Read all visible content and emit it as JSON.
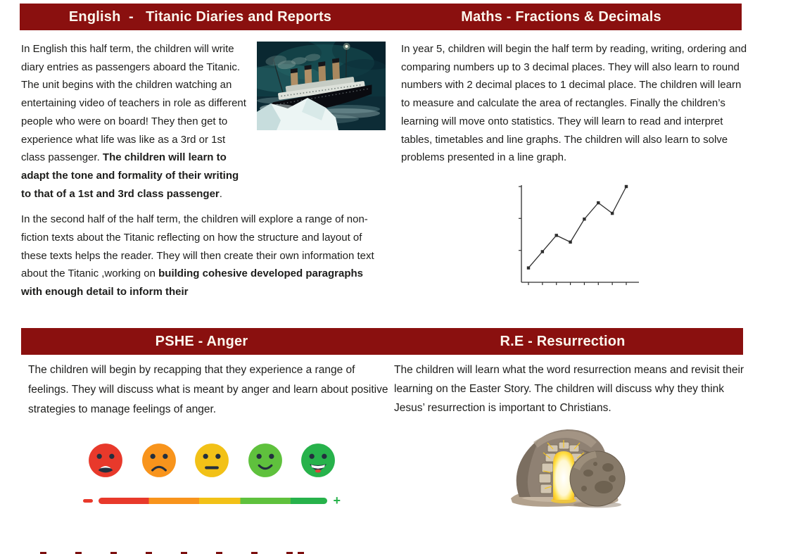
{
  "colors": {
    "banner_bg": "#8a100f",
    "banner_text": "#fcf7ee",
    "body_text": "#1d1d1b"
  },
  "banners": {
    "top_left": "English  -   Titanic Diaries and Reports",
    "top_right": "Maths - Fractions & Decimals",
    "bottom_left": "PSHE - Anger",
    "bottom_right": "R.E - Resurrection"
  },
  "english": {
    "para1_text": "In English this half term, the children will write diary entries as passengers aboard the Titanic. The unit begins with the children watching an entertaining video of teachers in role as different people who were on board! They then get to experience what life was like as a 3rd or 1st class passenger. ",
    "para1_bold": "The children will learn to adapt the tone and formality of their writing to that of a 1st and 3rd class passenger",
    "para1_tail": ".",
    "para2_text": "In the second half of the half term, the children will explore a range of non-fiction texts about the Titanic reflecting on how the structure and layout of these texts helps the reader. They will then create their own information text about the Titanic ,working on ",
    "para2_bold": "building cohesive developed paragraphs with enough detail to inform their",
    "image_name": "titanic-ship-photo"
  },
  "maths": {
    "para": "In year 5, children will begin the half term by reading, writing, ordering and comparing numbers up to 3 decimal places. They will also learn to round numbers with 2 decimal places to 1 decimal place. The children will learn to measure and calculate the area of rectangles. Finally the children’s learning will move onto statistics. They will learn to read and interpret tables, timetables and line graphs. The children will also learn to solve problems presented in a line graph."
  },
  "pshe": {
    "para": "The children will begin by recapping that they experience a range of feelings. They will discuss what is meant by anger and learn about positive strategies to manage feelings of anger.",
    "scale": {
      "minus_label": "–",
      "plus_label": "+",
      "faces": [
        {
          "mood": "very-angry",
          "color": "#e8392b"
        },
        {
          "mood": "sad",
          "color": "#f8941c"
        },
        {
          "mood": "neutral",
          "color": "#f2c117"
        },
        {
          "mood": "happy",
          "color": "#5fc13d"
        },
        {
          "mood": "very-happy",
          "color": "#27b24b"
        }
      ],
      "bar_colors": [
        "#e8392b",
        "#f8941c",
        "#f2c117",
        "#5fc13d",
        "#27b24b"
      ]
    }
  },
  "re": {
    "para": "The children will learn what the word resurrection means and revisit their learning on the Easter Story. The children will discuss why they think Jesus’ resurrection is important to Christians.",
    "image_name": "empty-tomb-illustration"
  },
  "chart_data": {
    "type": "line",
    "title": "",
    "xlabel": "",
    "ylabel": "",
    "x": [
      1,
      2,
      3,
      4,
      5,
      6,
      7,
      8
    ],
    "values": [
      1.5,
      3.2,
      4.9,
      4.2,
      6.6,
      8.3,
      7.2,
      10
    ],
    "ylim": [
      0,
      10
    ],
    "yticks": [
      3.33,
      6.67,
      10
    ],
    "grid": false,
    "legend": null,
    "marker": "square",
    "color": "#2e2e2e",
    "notes": "unlabeled example line graph, 8 points rising with two dips"
  }
}
